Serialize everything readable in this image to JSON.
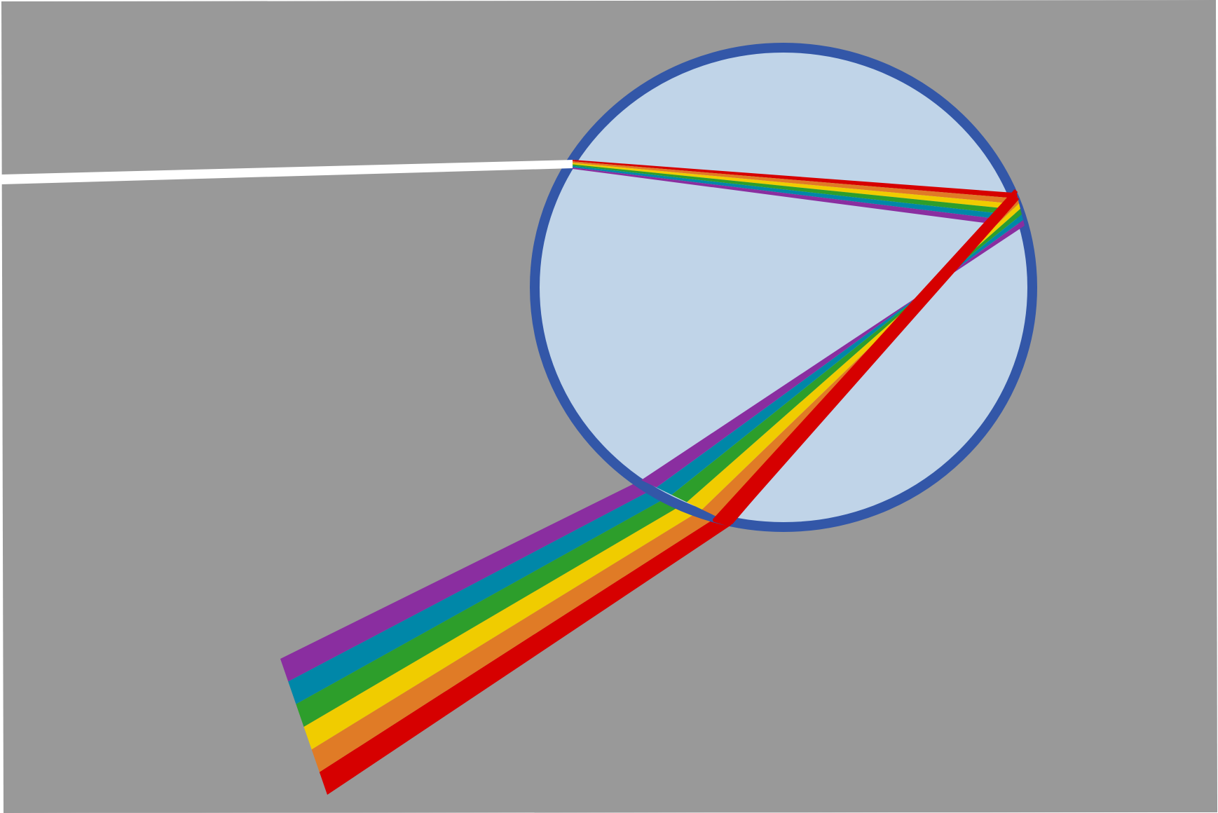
{
  "colors": {
    "page_background": "#ffffff",
    "panel_background": "#999999",
    "droplet_fill": "#c0d4e8",
    "droplet_outline": "#3357a8",
    "incident_light": "#ffffff"
  },
  "spectrum": [
    {
      "name": "red",
      "color": "#d60000"
    },
    {
      "name": "orange",
      "color": "#e07b26"
    },
    {
      "name": "yellow",
      "color": "#f0cc00"
    },
    {
      "name": "green",
      "color": "#2d9e2b"
    },
    {
      "name": "blue",
      "color": "#0087a8"
    },
    {
      "name": "violet",
      "color": "#8a2ea0"
    }
  ],
  "icons": {
    "droplet": "raindrop-circle",
    "light_ray": "white-light-ray",
    "spectrum": "rainbow-fan"
  }
}
